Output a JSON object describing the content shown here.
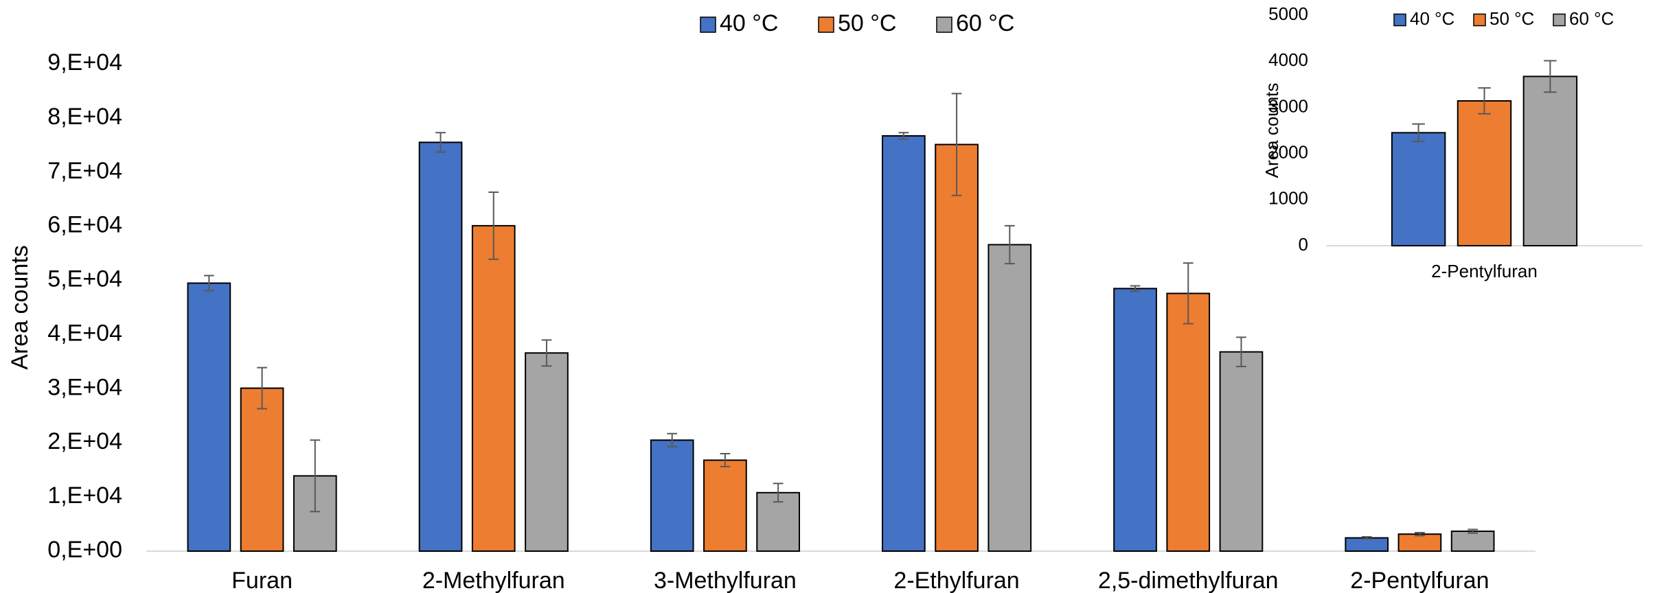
{
  "chart_data": [
    {
      "type": "bar",
      "y_label": "Area counts",
      "categories": [
        "Furan",
        "2-Methylfuran",
        "3-Methylfuran",
        "2-Ethylfuran",
        "2,5-dimethylfuran",
        "2-Pentylfuran"
      ],
      "series": [
        {
          "name": "40 °C",
          "color": "#4472c4",
          "values": [
            49500,
            75500,
            20500,
            76700,
            48500,
            2450
          ],
          "errors": [
            1400,
            1800,
            1200,
            600,
            500,
            190
          ]
        },
        {
          "name": "50 °C",
          "color": "#ed7d31",
          "values": [
            30100,
            60100,
            16800,
            75100,
            47600,
            3140
          ],
          "errors": [
            3800,
            6200,
            1200,
            9400,
            5600,
            280
          ]
        },
        {
          "name": "60 °C",
          "color": "#a5a5a5",
          "values": [
            13900,
            36600,
            10800,
            56600,
            36800,
            3670
          ],
          "errors": [
            6600,
            2400,
            1700,
            3500,
            2700,
            340
          ]
        }
      ],
      "ylim": [
        0,
        90000
      ],
      "yticks": [
        {
          "value": 0,
          "label": "0,E+00"
        },
        {
          "value": 10000,
          "label": "1,E+04"
        },
        {
          "value": 20000,
          "label": "2,E+04"
        },
        {
          "value": 30000,
          "label": "3,E+04"
        },
        {
          "value": 40000,
          "label": "4,E+04"
        },
        {
          "value": 50000,
          "label": "5,E+04"
        },
        {
          "value": 60000,
          "label": "6,E+04"
        },
        {
          "value": 70000,
          "label": "7,E+04"
        },
        {
          "value": 80000,
          "label": "8,E+04"
        },
        {
          "value": 90000,
          "label": "9,E+04"
        }
      ],
      "legend": "top"
    },
    {
      "type": "bar",
      "y_label": "Area counts",
      "categories": [
        "2-Pentylfuran"
      ],
      "series": [
        {
          "name": "40 °C",
          "color": "#4472c4",
          "values": [
            2450
          ],
          "errors": [
            190
          ]
        },
        {
          "name": "50 °C",
          "color": "#ed7d31",
          "values": [
            3140
          ],
          "errors": [
            280
          ]
        },
        {
          "name": "60 °C",
          "color": "#a5a5a5",
          "values": [
            3670
          ],
          "errors": [
            340
          ]
        }
      ],
      "ylim": [
        0,
        5000
      ],
      "yticks": [
        0,
        1000,
        2000,
        3000,
        4000,
        5000
      ],
      "legend": "top"
    }
  ]
}
